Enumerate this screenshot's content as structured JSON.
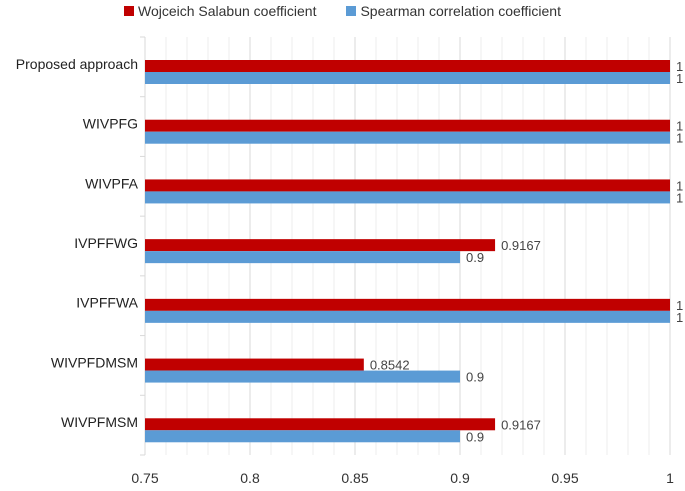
{
  "chart_data": {
    "type": "bar",
    "orientation": "horizontal",
    "categories": [
      "Proposed approach",
      "WIVPFG",
      "WIVPFA",
      "IVPFFWG",
      "IVPFFWA",
      "WIVPFDMSM",
      "WIVPFMSM"
    ],
    "series": [
      {
        "name": "Wojceich Salabun coefficient",
        "color": "#c00000",
        "values": [
          1,
          1,
          1,
          0.9167,
          1,
          0.8542,
          0.9167
        ],
        "labels": [
          "1",
          "1",
          "1",
          "0.9167",
          "1",
          "0.8542",
          "0.9167"
        ]
      },
      {
        "name": "Spearman correlation coefficient",
        "color": "#5b9bd5",
        "values": [
          1,
          1,
          1,
          0.9,
          1,
          0.9,
          0.9
        ],
        "labels": [
          "1",
          "1",
          "1",
          "0.9",
          "1",
          "0.9",
          "0.9"
        ]
      }
    ],
    "xlim": [
      0.75,
      1
    ],
    "x_ticks": [
      "0.75",
      "0.8",
      "0.85",
      "0.9",
      "0.95",
      "1"
    ],
    "grid": "vertical major and minor",
    "legend": "top",
    "title": "",
    "xlabel": "",
    "ylabel": ""
  }
}
